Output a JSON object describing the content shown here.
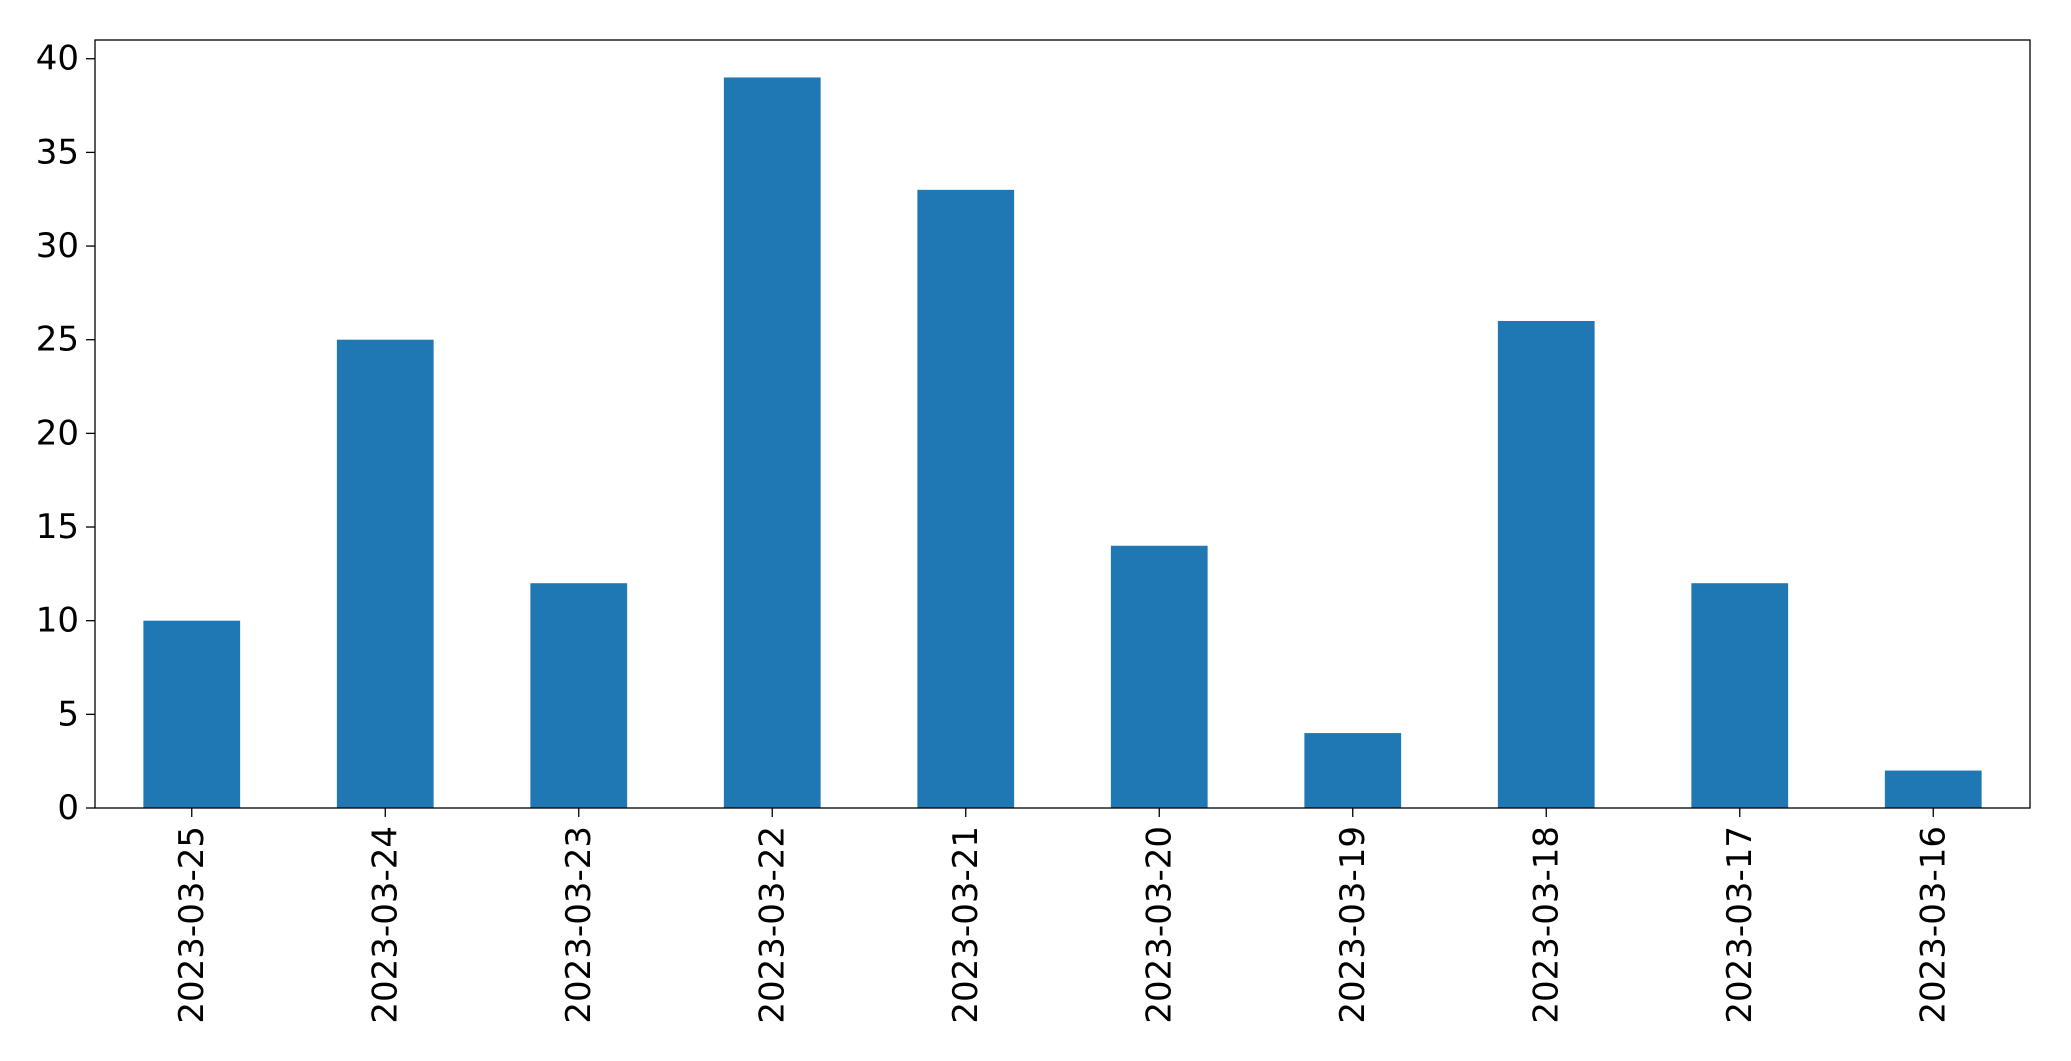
{
  "chart_data": {
    "type": "bar",
    "categories": [
      "2023-03-25",
      "2023-03-24",
      "2023-03-23",
      "2023-03-22",
      "2023-03-21",
      "2023-03-20",
      "2023-03-19",
      "2023-03-18",
      "2023-03-17",
      "2023-03-16"
    ],
    "values": [
      10,
      25,
      12,
      39,
      33,
      14,
      4,
      26,
      12,
      2
    ],
    "color": "#1f77b4",
    "ylim": [
      0,
      41
    ],
    "yticks": [
      0,
      5,
      10,
      15,
      20,
      25,
      30,
      35,
      40
    ],
    "grid": false
  }
}
